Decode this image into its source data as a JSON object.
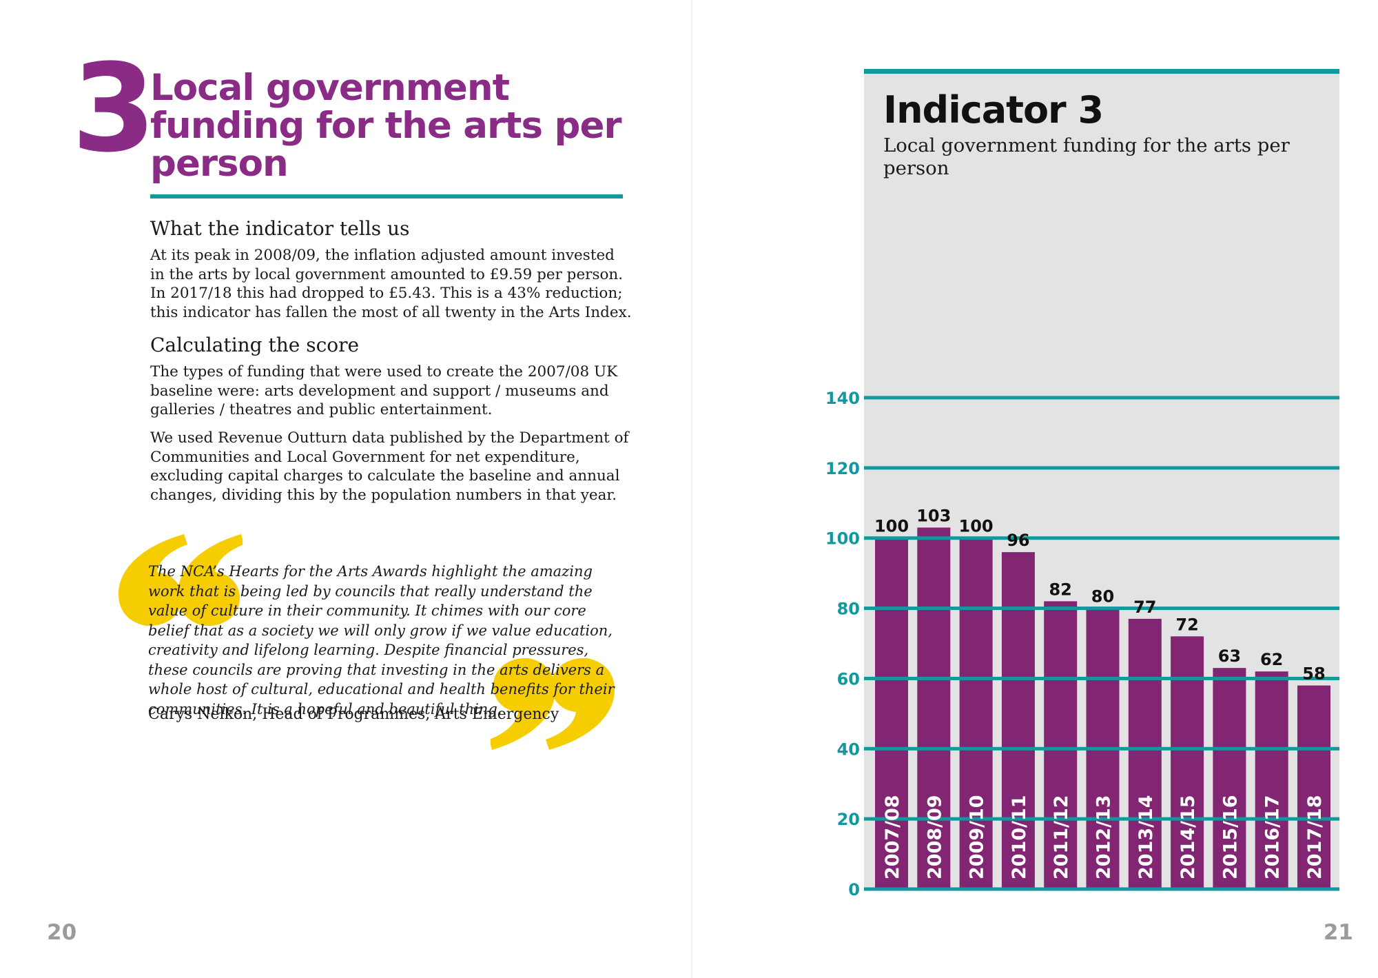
{
  "left_page": {
    "number_label": "3",
    "heading": "Local government funding for the arts per person",
    "section1_title": "What the indicator tells us",
    "section1_text": "At its peak in 2008/09, the inflation adjusted amount invested in the arts by local government amounted to £9.59 per person. In 2017/18 this had dropped to £5.43. This is a 43% reduction; this indicator has fallen the most of all twenty in the Arts Index.",
    "section2_title": "Calculating the score",
    "section2_para1": "The types of funding that were used to create the 2007/08 UK baseline were: arts development and support / museums and galleries / theatres and public entertainment.",
    "section2_para2": "We used Revenue Outturn data published by the Department of Communities and Local Government for net expenditure, excluding capital charges to calculate the baseline and annual changes, dividing this by the population numbers in that year.",
    "quote": "The NCA’s Hearts for the Arts Awards highlight the amazing work that is being led by councils that really understand the value of culture in their community. It chimes with our core belief that as a society we will only grow if we value education, creativity and lifelong learning. Despite financial pressures, these councils are proving that investing in the arts delivers a whole host of cultural, educational and health benefits for their communities. It is a hopeful and beautiful thing.",
    "quote_attribution": "Carys Nelkon, Head of Programmes, Arts Emergency",
    "page_number": "20"
  },
  "right_page": {
    "page_number": "21"
  },
  "colors": {
    "purple": "#8a2b86",
    "bar_purple": "#822573",
    "teal": "#13989d",
    "yellow": "#f5cd00",
    "panel_gray": "#e3e3e3"
  },
  "chart_data": {
    "type": "bar",
    "title": "Indicator 3",
    "subtitle": "Local government funding for the arts per person",
    "categories": [
      "2007/08",
      "2008/09",
      "2009/10",
      "2010/11",
      "2011/12",
      "2012/13",
      "2013/14",
      "2014/15",
      "2015/16",
      "2016/17",
      "2017/18"
    ],
    "values": [
      100,
      103,
      100,
      96,
      82,
      80,
      77,
      72,
      63,
      62,
      58
    ],
    "value_labels": [
      "100",
      "103",
      "100",
      "96",
      "82",
      "80",
      "77",
      "72",
      "63",
      "62",
      "58"
    ],
    "yticks": [
      0,
      20,
      40,
      60,
      80,
      100,
      120,
      140
    ],
    "ylim": [
      0,
      140
    ],
    "xlabel": "",
    "ylabel": "",
    "grid": true,
    "legend": "none"
  }
}
